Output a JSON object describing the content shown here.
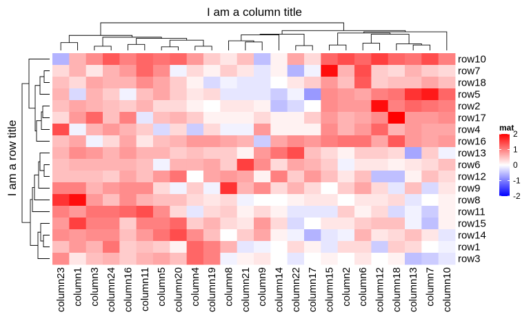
{
  "chart_data": {
    "type": "heatmap",
    "title": "I am a column title",
    "ylabel": "I am a row title",
    "columns": [
      "column23",
      "column1",
      "column3",
      "column24",
      "column16",
      "column11",
      "column5",
      "column20",
      "column4",
      "column19",
      "column8",
      "column21",
      "column9",
      "column14",
      "column22",
      "column17",
      "column15",
      "column2",
      "column6",
      "column12",
      "column18",
      "column13",
      "column7",
      "column10"
    ],
    "rows": [
      "row10",
      "row7",
      "row18",
      "row5",
      "row2",
      "row17",
      "row4",
      "row16",
      "row13",
      "row6",
      "row12",
      "row9",
      "row8",
      "row11",
      "row15",
      "row14",
      "row1",
      "row3"
    ],
    "values": [
      [
        -0.6,
        0.6,
        0.9,
        1.3,
        1.0,
        1.2,
        1.1,
        1.2,
        0.8,
        0.4,
        0.2,
        0.5,
        -0.5,
        0.1,
        0.7,
        0.3,
        1.2,
        1.4,
        1.2,
        1.5,
        1.2,
        1.1,
        1.4,
        1.0
      ],
      [
        0.3,
        0.6,
        0.2,
        0.6,
        0.8,
        1.2,
        0.9,
        -0.1,
        0.3,
        0.1,
        0.4,
        0.2,
        -0.2,
        0.1,
        -0.6,
        -0.1,
        1.9,
        0.6,
        1.4,
        0.4,
        0.3,
        0.6,
        0.4,
        0.3
      ],
      [
        0.5,
        0.3,
        0.7,
        0.6,
        0.6,
        0.9,
        0.7,
        0.4,
        0.1,
        -0.3,
        -0.1,
        -0.2,
        -0.2,
        0.0,
        0.2,
        0.4,
        0.8,
        0.5,
        1.3,
        0.4,
        0.5,
        0.5,
        0.7,
        0.5
      ],
      [
        0.6,
        -0.3,
        0.6,
        0.4,
        -0.1,
        0.5,
        0.7,
        0.4,
        0.2,
        0.3,
        -0.2,
        -0.2,
        -0.2,
        -0.4,
        -0.1,
        -0.8,
        0.9,
        0.8,
        0.7,
        1.0,
        1.1,
        1.6,
        1.8,
        1.2
      ],
      [
        0.5,
        0.7,
        0.6,
        0.5,
        0.4,
        0.6,
        0.3,
        0.3,
        0.1,
        0.0,
        0.2,
        0.2,
        0.1,
        -0.5,
        -0.3,
        0.0,
        0.9,
        0.8,
        0.8,
        1.9,
        1.0,
        1.2,
        1.1,
        1.0
      ],
      [
        0.3,
        0.8,
        1.2,
        0.5,
        1.0,
        -0.2,
        0.5,
        0.6,
        0.4,
        0.1,
        0.1,
        0.1,
        0.3,
        0.1,
        0.1,
        0.4,
        0.8,
        0.6,
        0.7,
        0.9,
        2.0,
        0.8,
        0.8,
        0.9
      ],
      [
        1.4,
        -0.1,
        0.6,
        0.8,
        0.6,
        0.4,
        -0.3,
        0.3,
        -0.4,
        0.3,
        -0.1,
        -0.1,
        0.8,
        0.1,
        0.1,
        0.1,
        0.9,
        0.6,
        0.8,
        1.2,
        0.6,
        0.8,
        0.7,
        0.7
      ],
      [
        0.5,
        0.7,
        -0.1,
        0.3,
        0.7,
        0.2,
        0.5,
        0.6,
        0.8,
        0.8,
        0.7,
        0.6,
        -0.4,
        0.7,
        0.9,
        0.8,
        1.0,
        1.1,
        1.1,
        0.7,
        1.3,
        0.8,
        0.7,
        0.8
      ],
      [
        0.6,
        0.9,
        0.8,
        0.6,
        0.8,
        0.6,
        0.6,
        0.4,
        0.5,
        0.4,
        0.4,
        0.1,
        0.8,
        1.1,
        1.4,
        0.5,
        0.3,
        0.1,
        0.4,
        0.4,
        0.3,
        -0.7,
        0.4,
        -0.1
      ],
      [
        0.5,
        0.6,
        0.6,
        0.6,
        0.6,
        0.5,
        -0.1,
        0.6,
        0.6,
        0.7,
        0.4,
        1.5,
        0.9,
        0.3,
        0.7,
        0.6,
        0.4,
        -0.1,
        0.2,
        0.2,
        0.1,
        0.2,
        0.3,
        0.5
      ],
      [
        0.5,
        0.5,
        0.5,
        0.4,
        0.7,
        0.5,
        0.8,
        1.1,
        0.0,
        0.7,
        0.8,
        0.7,
        0.1,
        1.0,
        0.4,
        0.8,
        0.5,
        0.2,
        0.5,
        -0.5,
        -0.5,
        0.1,
        0.5,
        0.3
      ],
      [
        1.0,
        1.0,
        0.6,
        0.8,
        0.9,
        0.9,
        0.3,
        -0.1,
        0.4,
        -0.1,
        1.6,
        0.6,
        0.9,
        0.3,
        0.6,
        0.3,
        0.0,
        0.4,
        0.7,
        0.3,
        -0.2,
        0.5,
        -0.3,
        0.2
      ],
      [
        1.6,
        1.9,
        0.8,
        0.5,
        0.9,
        0.6,
        0.5,
        0.5,
        0.3,
        0.2,
        0.3,
        -0.1,
        0.0,
        0.0,
        0.1,
        0.2,
        0.2,
        0.0,
        0.2,
        0.2,
        0.3,
        -0.2,
        0.0,
        0.1
      ],
      [
        1.0,
        0.8,
        1.1,
        1.1,
        1.2,
        1.4,
        0.9,
        0.3,
        -0.2,
        0.3,
        0.4,
        0.1,
        0.3,
        0.1,
        -0.2,
        -0.2,
        -0.2,
        0.4,
        0.1,
        0.3,
        -0.3,
        -0.1,
        -0.4,
        0.1
      ],
      [
        0.8,
        1.5,
        1.0,
        1.0,
        0.4,
        1.0,
        1.0,
        1.2,
        0.4,
        0.6,
        0.3,
        0.2,
        0.8,
        0.3,
        -0.3,
        0.0,
        0.2,
        0.2,
        0.4,
        0.5,
        0.5,
        -0.1,
        -0.5,
        0.1
      ],
      [
        0.9,
        0.8,
        0.9,
        0.9,
        0.5,
        0.8,
        1.1,
        1.4,
        0.9,
        0.5,
        0.0,
        0.4,
        0.7,
        0.1,
        -0.1,
        -0.6,
        -0.2,
        -0.1,
        0.6,
        0.2,
        0.3,
        0.5,
        0.2,
        -0.2
      ],
      [
        0.5,
        0.8,
        0.6,
        1.1,
        0.4,
        0.5,
        0.4,
        0.1,
        1.2,
        1.0,
        0.6,
        -0.2,
        -0.1,
        0.0,
        0.3,
        0.1,
        -0.2,
        0.3,
        0.3,
        -0.4,
        0.4,
        0.3,
        0.0,
        -0.1
      ],
      [
        0.9,
        0.2,
        0.5,
        0.6,
        0.4,
        0.6,
        0.7,
        0.5,
        1.2,
        1.0,
        -0.1,
        0.1,
        0.2,
        0.0,
        -0.2,
        0.0,
        0.1,
        0.0,
        0.2,
        0.0,
        0.1,
        -0.5,
        -0.4,
        -0.2
      ]
    ],
    "legend": {
      "title": "mat",
      "ticks": [
        2,
        1,
        0,
        -1,
        -2
      ],
      "tick_labels": [
        "2",
        "1",
        "0",
        "-1",
        "-2"
      ],
      "range": [
        -2,
        2
      ],
      "colors": {
        "low": "#0000ff",
        "mid": "#ffffff",
        "high": "#ff0000"
      }
    },
    "column_dendrogram": {
      "merges": [
        [
          6,
          7
        ],
        [
          8,
          9
        ],
        [
          2,
          3
        ],
        [
          14,
          15
        ],
        [
          16,
          17
        ],
        [
          21,
          22
        ],
        [
          4,
          5
        ],
        [
          20,
          "m5"
        ],
        [
          18,
          19
        ],
        [
          0,
          1
        ],
        [
          11,
          12
        ],
        [
          10,
          "m10"
        ],
        [
          "m0",
          "m1"
        ],
        [
          "m6",
          "m12"
        ],
        [
          "m2",
          "m13"
        ],
        [
          "m9",
          "m14"
        ],
        [
          "m11",
          13
        ],
        [
          "m3",
          "m16"
        ],
        [
          "m8",
          "m7"
        ],
        [
          "m4",
          "m18"
        ],
        [
          "m19",
          23
        ],
        [
          "m17",
          "m20"
        ],
        [
          "m15",
          "m21"
        ]
      ],
      "heights": [
        0.3,
        0.35,
        0.35,
        0.4,
        0.45,
        0.45,
        0.5,
        0.55,
        0.6,
        0.65,
        0.7,
        0.8,
        0.85,
        1.0,
        1.1,
        1.25,
        1.3,
        1.35,
        1.35,
        1.45,
        1.55,
        1.65,
        2.3
      ]
    },
    "row_dendrogram": {
      "merges": [
        [
          1,
          2
        ],
        [
          9,
          10
        ],
        [
          15,
          16
        ],
        [
          4,
          5
        ],
        [
          "m3",
          6
        ],
        [
          14,
          "m2"
        ],
        [
          "m0",
          3
        ],
        [
          8,
          "m1"
        ],
        [
          "m7",
          11
        ],
        [
          "m5",
          17
        ],
        [
          "m4",
          7
        ],
        [
          "m6",
          "m10"
        ],
        [
          "m8",
          12
        ],
        [
          "m12",
          13
        ],
        [
          "m13",
          "m9"
        ],
        [
          0,
          "m11"
        ],
        [
          "m15",
          "m14"
        ]
      ],
      "heights": [
        0.4,
        0.4,
        0.45,
        0.5,
        0.6,
        0.65,
        0.7,
        0.7,
        0.8,
        0.85,
        0.95,
        1.05,
        1.1,
        1.25,
        1.4,
        1.5,
        2.0
      ]
    }
  }
}
